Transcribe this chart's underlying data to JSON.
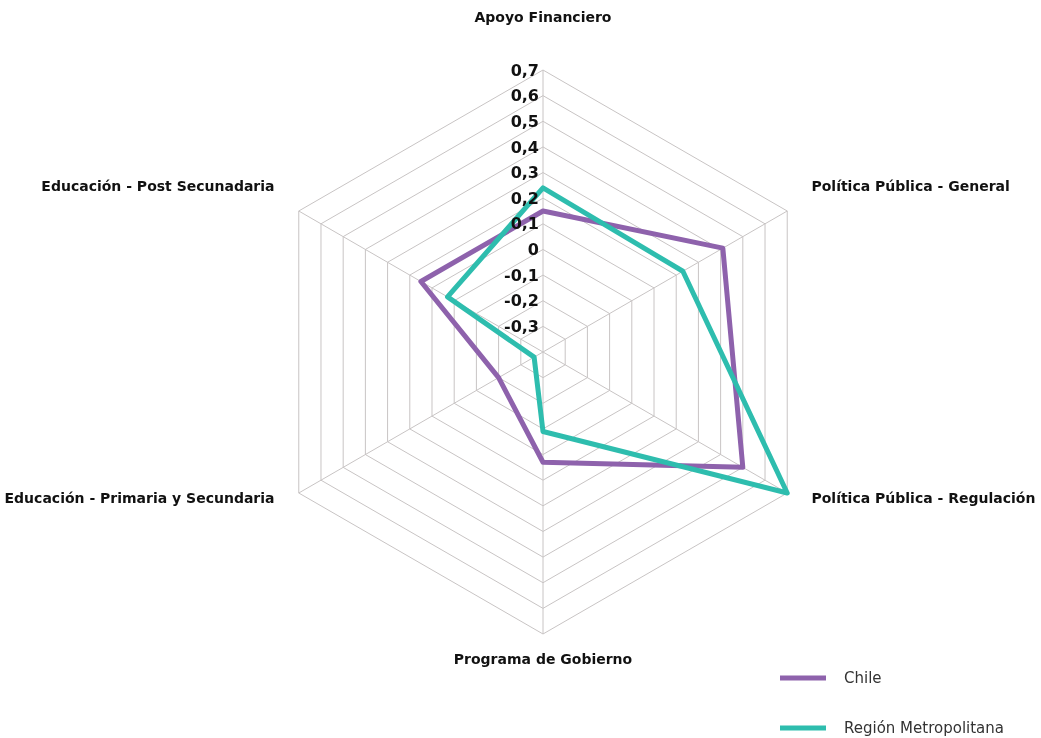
{
  "chart_data": {
    "type": "radar",
    "categories": [
      "Apoyo Financiero",
      "Política Pública - General",
      "Política Pública - Regulación",
      "Programa de Gobierno",
      "Educación - Primaria y Secundaria",
      "Educación - Post Secunadaria"
    ],
    "series": [
      {
        "name": "Chile",
        "color": "#8e62ac",
        "values": [
          0.15,
          0.41,
          0.5,
          0.03,
          -0.2,
          0.15
        ]
      },
      {
        "name": "Región Metropolitana",
        "color": "#2ebdae",
        "values": [
          0.24,
          0.23,
          0.7,
          -0.09,
          -0.36,
          0.03
        ]
      }
    ],
    "ylim": [
      -0.4,
      0.7
    ],
    "yticks": [
      {
        "value": -0.3,
        "label": "-0,3"
      },
      {
        "value": -0.2,
        "label": "-0,2"
      },
      {
        "value": -0.1,
        "label": "-0,1"
      },
      0,
      {
        "value": 0.1,
        "label": "0,1"
      },
      {
        "value": 0.2,
        "label": "0,2"
      },
      {
        "value": 0.3,
        "label": "0,3"
      },
      {
        "value": 0.4,
        "label": "0,4"
      },
      {
        "value": 0.5,
        "label": "0,5"
      },
      {
        "value": 0.6,
        "label": "0,6"
      },
      {
        "value": 0.7,
        "label": "0,7"
      }
    ],
    "grid": true,
    "legend": "bottom right"
  }
}
